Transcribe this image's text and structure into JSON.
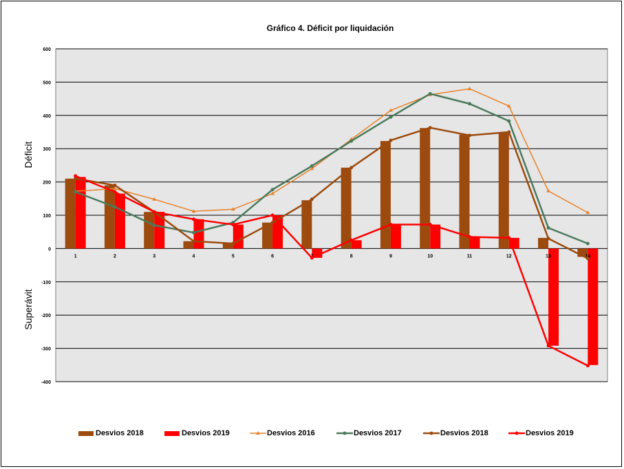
{
  "chart_data": {
    "type": "bar",
    "title": "Gráfico 4. Déficit por liquidación",
    "ylabel_top": "Déficit",
    "ylabel_bottom": "Superávit",
    "ylim": [
      -400,
      600
    ],
    "yticks": [
      600,
      500,
      400,
      300,
      200,
      100,
      0,
      -100,
      -200,
      -300,
      -400
    ],
    "categories": [
      "1",
      "2",
      "3",
      "4",
      "5",
      "6",
      "7",
      "8",
      "9",
      "10",
      "11",
      "12",
      "13",
      "14"
    ],
    "bar_series": [
      {
        "name": "Desvios 2018",
        "color": "#9c4a0e",
        "values": [
          210,
          190,
          110,
          22,
          15,
          78,
          145,
          243,
          323,
          362,
          342,
          347,
          32,
          -25
        ]
      },
      {
        "name": "Desvios 2019",
        "color": "#ff0000",
        "values": [
          215,
          165,
          110,
          88,
          72,
          100,
          -28,
          25,
          72,
          72,
          35,
          32,
          -292,
          -350
        ]
      }
    ],
    "line_series": [
      {
        "name": "Desvios 2016",
        "color": "#e8822a",
        "marker": "triangle",
        "values": [
          172,
          180,
          148,
          112,
          118,
          165,
          240,
          328,
          415,
          462,
          480,
          428,
          173,
          108
        ]
      },
      {
        "name": "Desvios 2017",
        "color": "#4a7a5c",
        "marker": "circle",
        "values": [
          170,
          125,
          70,
          48,
          78,
          177,
          248,
          323,
          395,
          465,
          435,
          383,
          62,
          15
        ]
      },
      {
        "name": "Desvios 2018",
        "color": "#9c4a0e",
        "marker": "circle",
        "values": [
          210,
          190,
          110,
          22,
          15,
          78,
          148,
          243,
          325,
          363,
          340,
          350,
          30,
          -30
        ]
      },
      {
        "name": "Desvios 2019",
        "color": "#ff0000",
        "marker": "circle",
        "values": [
          218,
          170,
          110,
          88,
          72,
          100,
          -28,
          25,
          72,
          72,
          35,
          32,
          -292,
          -352
        ]
      }
    ],
    "grid": true,
    "legend_position": "bottom"
  }
}
